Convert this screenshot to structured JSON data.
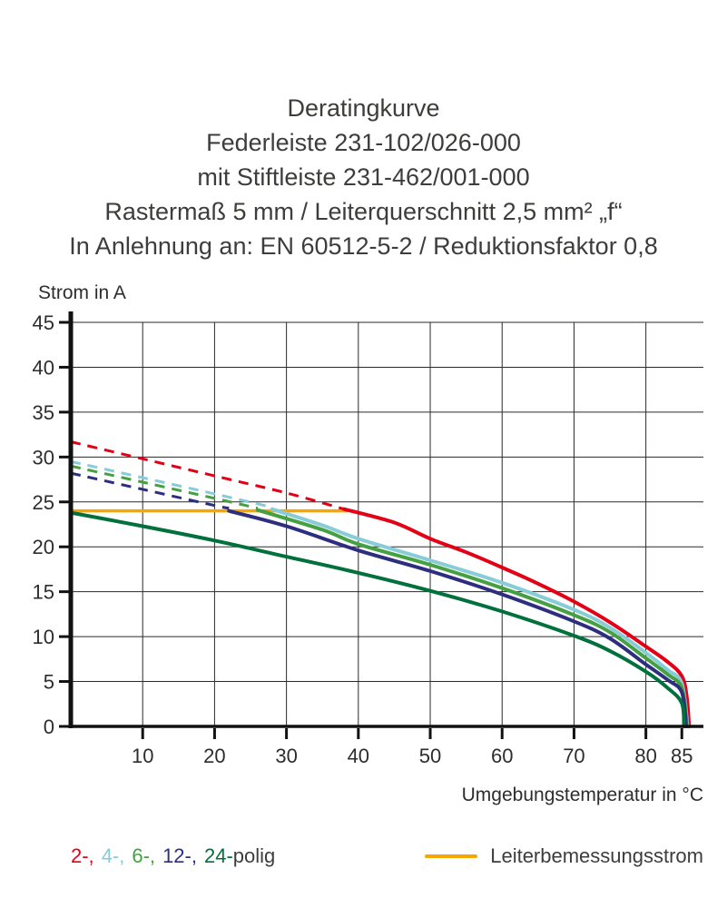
{
  "title_lines": [
    "Deratingkurve",
    "Federleiste 231-102/026-000",
    "mit Stiftleiste 231-462/001-000",
    "Rastermaß 5 mm / Leiterquerschnitt 2,5 mm² „f“",
    "In Anlehnung an: EN 60512-5-2 / Reduktionsfaktor 0,8"
  ],
  "chart_data": {
    "type": "line",
    "ylabel": "Strom in A",
    "xlabel": "Umgebungstemperatur in °C",
    "xlim": [
      0,
      88
    ],
    "ylim": [
      0,
      45
    ],
    "x_ticks": [
      10,
      20,
      30,
      40,
      50,
      60,
      70,
      80,
      85
    ],
    "y_ticks": [
      0,
      5,
      10,
      15,
      20,
      25,
      30,
      35,
      40,
      45
    ],
    "grid": true,
    "rated_current": {
      "y": 24,
      "x_start": 0,
      "x_end": 38.5,
      "color": "#f7a600"
    },
    "series": [
      {
        "name": "2-polig",
        "color": "#e30016",
        "dashed": [
          [
            0,
            31.7
          ],
          [
            10,
            29.8
          ],
          [
            20,
            27.9
          ],
          [
            30,
            26.0
          ],
          [
            38,
            24.2
          ]
        ],
        "solid": [
          [
            38,
            24.2
          ],
          [
            45,
            22.7
          ],
          [
            50,
            20.9
          ],
          [
            55,
            19.4
          ],
          [
            60,
            17.7
          ],
          [
            65,
            15.9
          ],
          [
            70,
            13.9
          ],
          [
            75,
            11.6
          ],
          [
            80,
            8.9
          ],
          [
            83,
            7.2
          ],
          [
            85,
            5.6
          ],
          [
            85.7,
            3.2
          ],
          [
            86,
            0
          ]
        ]
      },
      {
        "name": "4-polig",
        "color": "#87ccd7",
        "dashed": [
          [
            0,
            29.5
          ],
          [
            10,
            27.7
          ],
          [
            20,
            25.9
          ],
          [
            28,
            24.4
          ]
        ],
        "solid": [
          [
            28,
            24.2
          ],
          [
            35,
            22.4
          ],
          [
            40,
            20.9
          ],
          [
            50,
            18.5
          ],
          [
            60,
            16.0
          ],
          [
            70,
            13.0
          ],
          [
            75,
            11.0
          ],
          [
            80,
            8.2
          ],
          [
            83,
            6.3
          ],
          [
            85,
            4.8
          ],
          [
            85.8,
            0
          ]
        ]
      },
      {
        "name": "6-polig",
        "color": "#45a041",
        "dashed": [
          [
            0,
            29.0
          ],
          [
            10,
            27.2
          ],
          [
            20,
            25.4
          ],
          [
            26,
            24.3
          ]
        ],
        "solid": [
          [
            26,
            24.1
          ],
          [
            35,
            21.9
          ],
          [
            40,
            20.3
          ],
          [
            50,
            18.0
          ],
          [
            60,
            15.4
          ],
          [
            70,
            12.4
          ],
          [
            75,
            10.5
          ],
          [
            80,
            7.6
          ],
          [
            83,
            5.8
          ],
          [
            85,
            4.3
          ],
          [
            85.7,
            0
          ]
        ]
      },
      {
        "name": "12-polig",
        "color": "#2d2e7f",
        "dashed": [
          [
            0,
            28.2
          ],
          [
            10,
            26.4
          ],
          [
            20,
            24.6
          ],
          [
            22,
            24.3
          ]
        ],
        "solid": [
          [
            22,
            24.0
          ],
          [
            30,
            22.3
          ],
          [
            40,
            19.6
          ],
          [
            50,
            17.3
          ],
          [
            60,
            14.7
          ],
          [
            70,
            11.7
          ],
          [
            75,
            9.8
          ],
          [
            80,
            6.9
          ],
          [
            83,
            5.2
          ],
          [
            85,
            3.8
          ],
          [
            85.6,
            0
          ]
        ]
      },
      {
        "name": "24-polig",
        "color": "#00703c",
        "solid": [
          [
            0,
            23.8
          ],
          [
            10,
            22.3
          ],
          [
            20,
            20.7
          ],
          [
            30,
            18.9
          ],
          [
            40,
            17.1
          ],
          [
            50,
            15.1
          ],
          [
            60,
            12.8
          ],
          [
            70,
            10.1
          ],
          [
            75,
            8.4
          ],
          [
            80,
            6.1
          ],
          [
            83,
            4.3
          ],
          [
            85,
            2.6
          ],
          [
            85.3,
            0
          ]
        ]
      }
    ]
  },
  "legend": {
    "poles": [
      {
        "label": "2-,",
        "color": "#e30016"
      },
      {
        "label": "4-,",
        "color": "#87ccd7"
      },
      {
        "label": "6-,",
        "color": "#45a041"
      },
      {
        "label": "12-,",
        "color": "#2d2e7f"
      },
      {
        "label": "24-",
        "color": "#00703c"
      }
    ],
    "suffix": "polig",
    "rated_label": "Leiterbemessungsstrom"
  }
}
